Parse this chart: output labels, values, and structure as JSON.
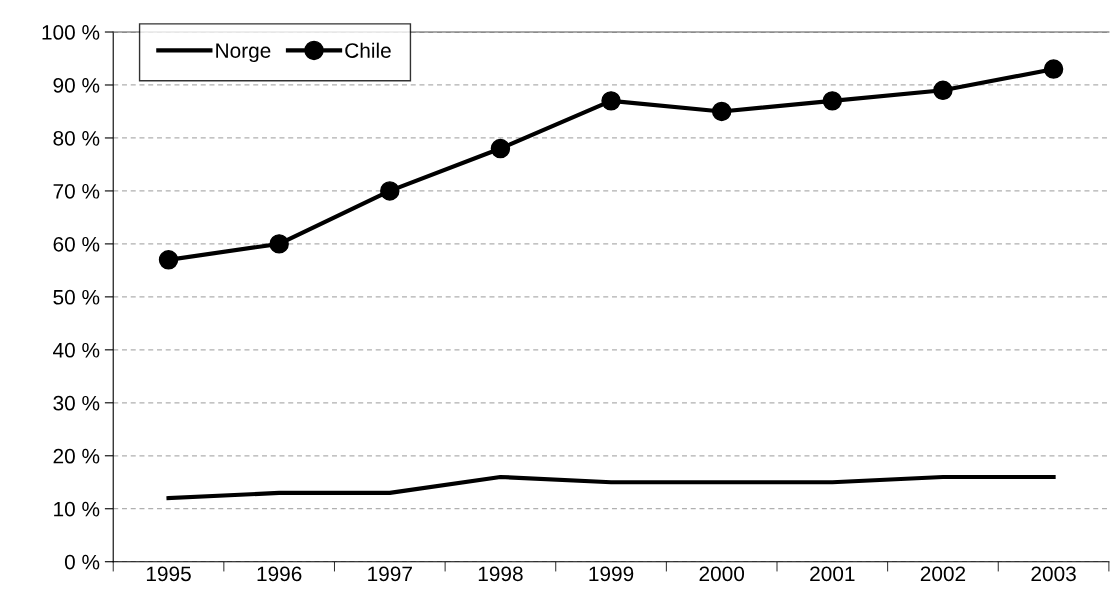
{
  "chart_data": {
    "type": "line",
    "categories": [
      "1995",
      "1996",
      "1997",
      "1998",
      "1999",
      "2000",
      "2001",
      "2002",
      "2003"
    ],
    "series": [
      {
        "name": "Norge",
        "color": "#000000",
        "marker": "none",
        "values": [
          12,
          13,
          13,
          16,
          15,
          15,
          15,
          16,
          16
        ]
      },
      {
        "name": "Chile",
        "color": "#000000",
        "marker": "circle",
        "values": [
          57,
          60,
          70,
          78,
          87,
          85,
          87,
          89,
          93
        ]
      }
    ],
    "ylim": [
      0,
      100
    ],
    "yticks": [
      {
        "value": 0,
        "label": "0 %"
      },
      {
        "value": 10,
        "label": "10 %"
      },
      {
        "value": 20,
        "label": "20 %"
      },
      {
        "value": 30,
        "label": "30 %"
      },
      {
        "value": 40,
        "label": "40 %"
      },
      {
        "value": 50,
        "label": "50 %"
      },
      {
        "value": 60,
        "label": "60 %"
      },
      {
        "value": 70,
        "label": "70 %"
      },
      {
        "value": 80,
        "label": "80 %"
      },
      {
        "value": 90,
        "label": "90 %"
      },
      {
        "value": 100,
        "label": "100 %"
      }
    ],
    "grid": "y",
    "legend": "top left",
    "line_style": "solid"
  }
}
